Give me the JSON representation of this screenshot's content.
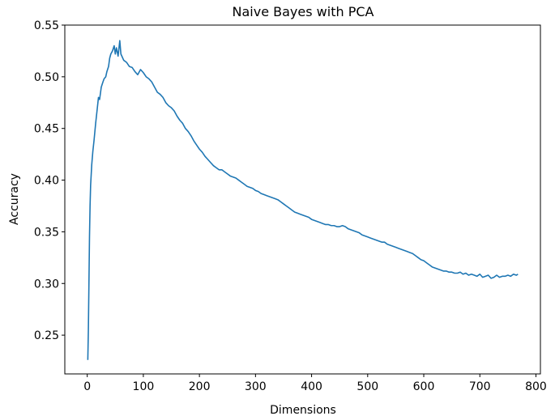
{
  "chart_data": {
    "type": "line",
    "title": "Naive Bayes with PCA",
    "xlabel": "Dimensions",
    "ylabel": "Accuracy",
    "xlim": [
      -40,
      808
    ],
    "ylim": [
      0.2125,
      0.55
    ],
    "xticks": [
      0,
      100,
      200,
      300,
      400,
      500,
      600,
      700,
      800
    ],
    "yticks": [
      0.25,
      0.3,
      0.35,
      0.4,
      0.45,
      0.5,
      0.55
    ],
    "ytick_decimals": 2,
    "grid": false,
    "line_color": "#1f77b4",
    "series": [
      {
        "x": [
          1,
          2,
          3,
          4,
          5,
          6,
          8,
          10,
          12,
          15,
          18,
          20,
          22,
          25,
          28,
          30,
          33,
          35,
          38,
          40,
          42,
          45,
          48,
          50,
          52,
          55,
          58,
          60,
          65,
          70,
          75,
          80,
          85,
          90,
          95,
          100,
          105,
          110,
          115,
          120,
          125,
          130,
          135,
          140,
          145,
          150,
          155,
          160,
          165,
          170,
          175,
          180,
          185,
          190,
          195,
          200,
          205,
          210,
          215,
          220,
          225,
          230,
          235,
          240,
          245,
          250,
          255,
          260,
          265,
          270,
          275,
          280,
          285,
          290,
          295,
          300,
          305,
          310,
          315,
          320,
          325,
          330,
          335,
          340,
          345,
          350,
          355,
          360,
          365,
          370,
          375,
          380,
          385,
          390,
          395,
          400,
          405,
          410,
          415,
          420,
          425,
          430,
          435,
          440,
          445,
          450,
          455,
          460,
          465,
          470,
          475,
          480,
          485,
          490,
          495,
          500,
          505,
          510,
          515,
          520,
          525,
          530,
          535,
          540,
          545,
          550,
          555,
          560,
          565,
          570,
          575,
          580,
          585,
          590,
          595,
          600,
          605,
          610,
          615,
          620,
          625,
          630,
          635,
          640,
          645,
          650,
          655,
          660,
          665,
          670,
          675,
          680,
          685,
          690,
          695,
          700,
          705,
          710,
          715,
          720,
          725,
          730,
          735,
          740,
          745,
          750,
          755,
          760,
          765,
          768
        ],
        "y": [
          0.226,
          0.255,
          0.3,
          0.345,
          0.375,
          0.395,
          0.415,
          0.428,
          0.438,
          0.455,
          0.47,
          0.48,
          0.478,
          0.49,
          0.495,
          0.498,
          0.5,
          0.505,
          0.51,
          0.518,
          0.522,
          0.525,
          0.53,
          0.522,
          0.528,
          0.52,
          0.535,
          0.522,
          0.516,
          0.514,
          0.51,
          0.509,
          0.505,
          0.502,
          0.507,
          0.504,
          0.5,
          0.498,
          0.495,
          0.49,
          0.485,
          0.483,
          0.48,
          0.475,
          0.472,
          0.47,
          0.467,
          0.462,
          0.458,
          0.455,
          0.45,
          0.447,
          0.443,
          0.438,
          0.434,
          0.43,
          0.427,
          0.423,
          0.42,
          0.417,
          0.414,
          0.412,
          0.41,
          0.41,
          0.408,
          0.406,
          0.404,
          0.403,
          0.402,
          0.4,
          0.398,
          0.396,
          0.394,
          0.393,
          0.392,
          0.39,
          0.389,
          0.387,
          0.386,
          0.385,
          0.384,
          0.383,
          0.382,
          0.381,
          0.379,
          0.377,
          0.375,
          0.373,
          0.371,
          0.369,
          0.368,
          0.367,
          0.366,
          0.365,
          0.364,
          0.362,
          0.361,
          0.36,
          0.359,
          0.358,
          0.357,
          0.357,
          0.356,
          0.356,
          0.355,
          0.355,
          0.356,
          0.355,
          0.353,
          0.352,
          0.351,
          0.35,
          0.349,
          0.347,
          0.346,
          0.345,
          0.344,
          0.343,
          0.342,
          0.341,
          0.34,
          0.34,
          0.338,
          0.337,
          0.336,
          0.335,
          0.334,
          0.333,
          0.332,
          0.331,
          0.33,
          0.329,
          0.327,
          0.325,
          0.323,
          0.322,
          0.32,
          0.318,
          0.316,
          0.315,
          0.314,
          0.313,
          0.312,
          0.312,
          0.311,
          0.311,
          0.31,
          0.31,
          0.311,
          0.309,
          0.31,
          0.308,
          0.309,
          0.308,
          0.307,
          0.309,
          0.306,
          0.307,
          0.308,
          0.305,
          0.306,
          0.308,
          0.306,
          0.307,
          0.307,
          0.308,
          0.307,
          0.309,
          0.308,
          0.309
        ]
      }
    ]
  }
}
